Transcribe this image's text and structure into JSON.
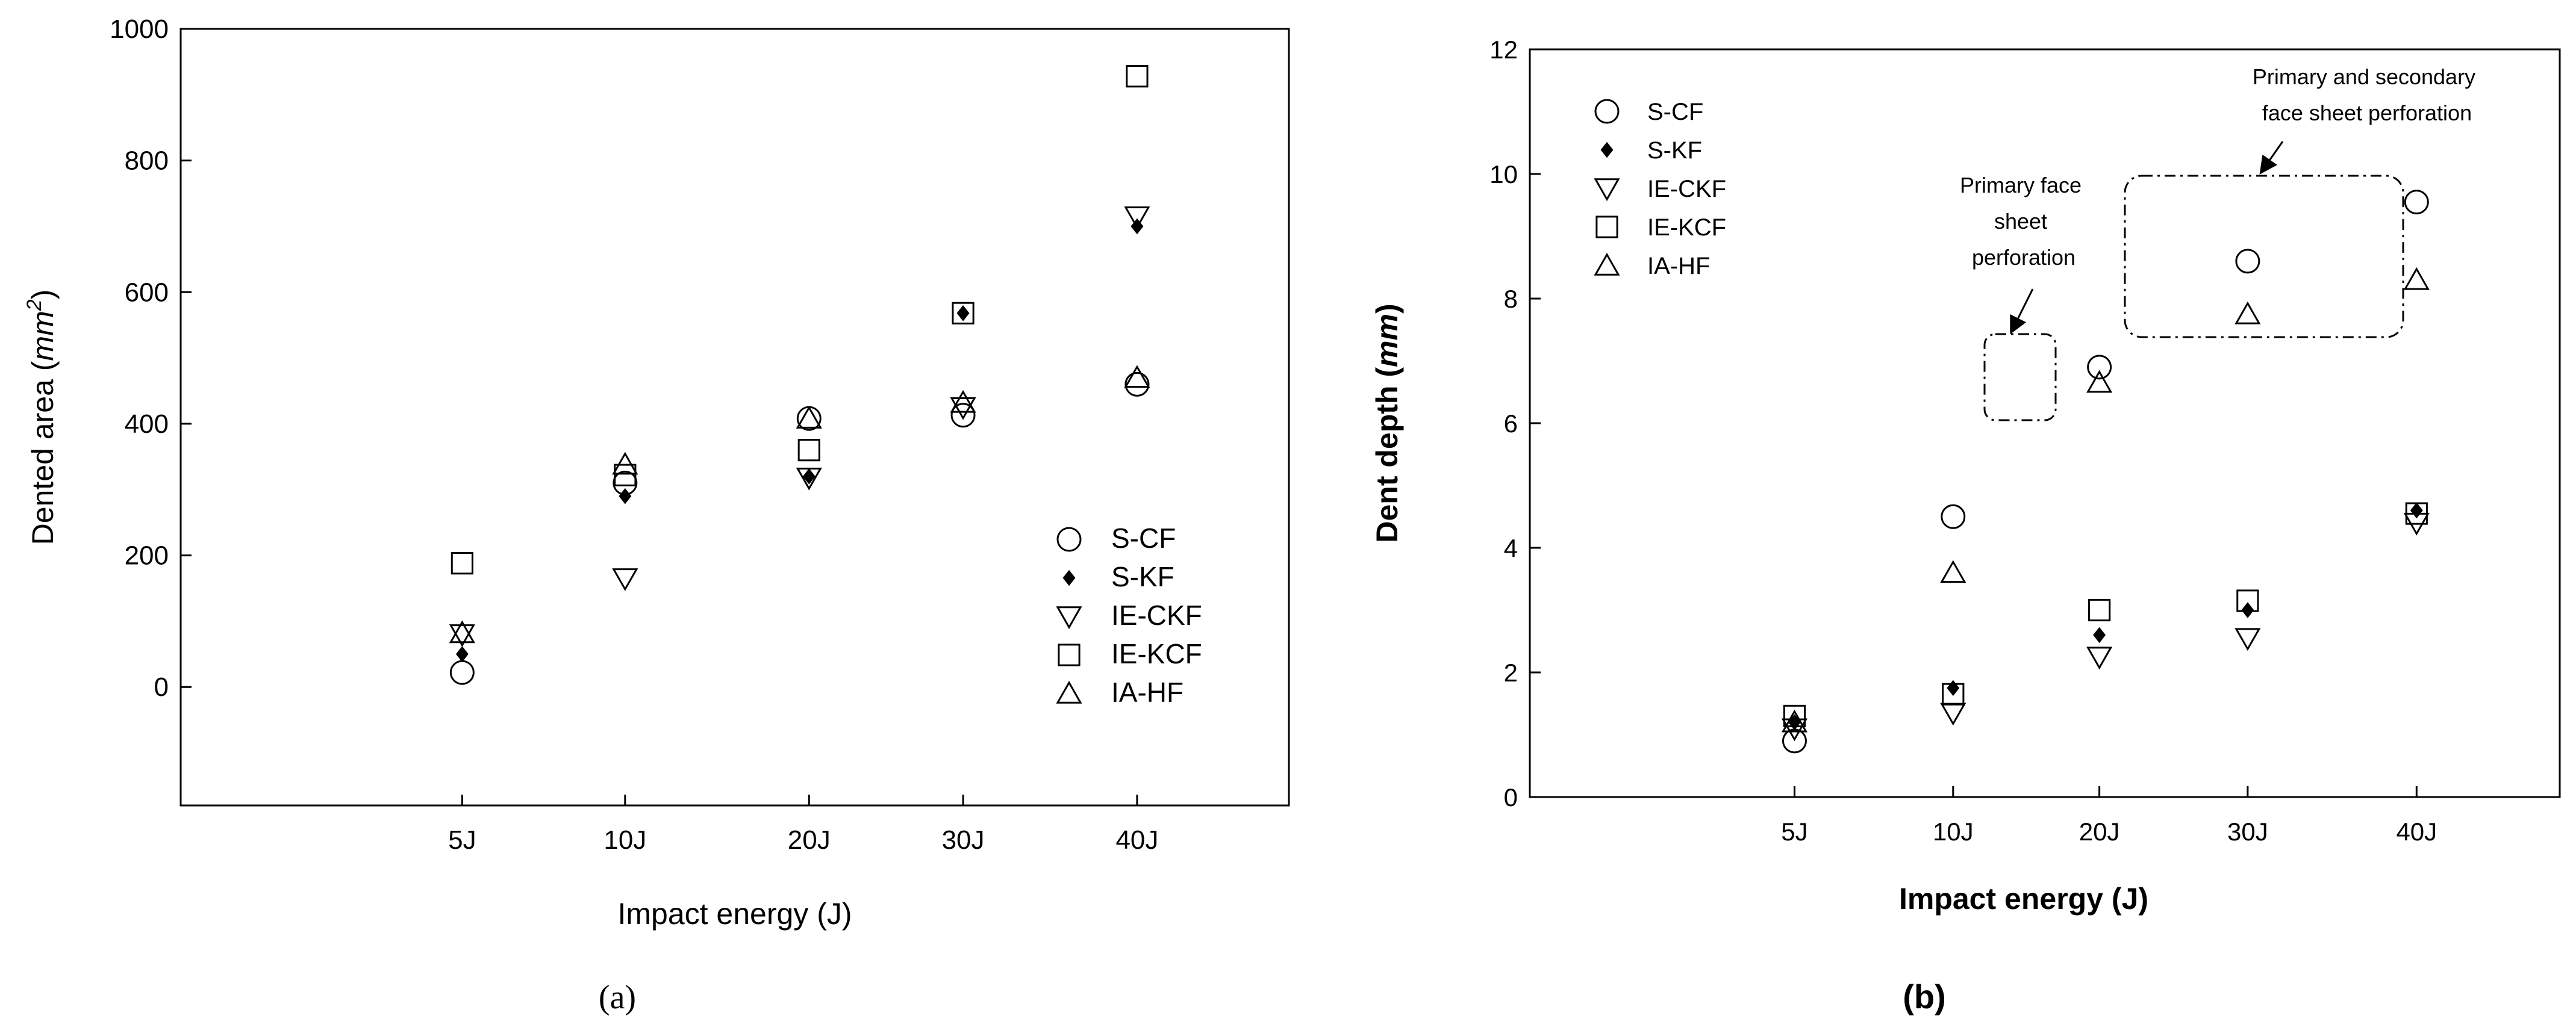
{
  "chart_data": [
    {
      "type": "scatter",
      "panel_label": "(a)",
      "xlabel": "Impact  energy (J)",
      "ylabel_main": "Dented area (",
      "ylabel_unit": "mm",
      "ylabel_sup": "2",
      "ylabel_close": ")",
      "categories": [
        "5J",
        "10J",
        "20J",
        "30J",
        "40J"
      ],
      "ylim": [
        -180,
        1000
      ],
      "yticks": [
        0,
        200,
        400,
        600,
        800,
        1000
      ],
      "legend_position": "lower-right",
      "series": [
        {
          "name": "S-CF",
          "marker": "circle",
          "values": [
            22,
            310,
            408,
            413,
            460
          ]
        },
        {
          "name": "S-KF",
          "marker": "dot",
          "values": [
            50,
            290,
            320,
            568,
            700
          ]
        },
        {
          "name": "IE-CKF",
          "marker": "triangle-down",
          "values": [
            80,
            165,
            318,
            425,
            715
          ]
        },
        {
          "name": "IE-KCF",
          "marker": "square",
          "values": [
            188,
            322,
            360,
            568,
            928
          ]
        },
        {
          "name": "IA-HF",
          "marker": "triangle-up",
          "values": [
            82,
            338,
            408,
            432,
            470
          ]
        }
      ],
      "annotations": []
    },
    {
      "type": "scatter",
      "panel_label": "(b)",
      "xlabel": "Impact energy (J)",
      "ylabel_main": "Dent depth (",
      "ylabel_unit": "mm",
      "ylabel_close": ")",
      "categories": [
        "5J",
        "10J",
        "20J",
        "30J",
        "40J"
      ],
      "ylim": [
        0,
        12
      ],
      "yticks": [
        0,
        2,
        4,
        6,
        8,
        10,
        12
      ],
      "legend_position": "upper-left",
      "series": [
        {
          "name": "S-CF",
          "marker": "circle",
          "values": [
            0.9,
            4.5,
            6.9,
            8.6,
            9.55
          ]
        },
        {
          "name": "S-KF",
          "marker": "dot",
          "values": [
            1.2,
            1.75,
            2.6,
            3.0,
            4.6
          ]
        },
        {
          "name": "IE-CKF",
          "marker": "triangle-down",
          "values": [
            1.1,
            1.35,
            2.25,
            2.55,
            4.4
          ]
        },
        {
          "name": "IE-KCF",
          "marker": "square",
          "values": [
            1.3,
            1.65,
            3.0,
            3.15,
            4.55
          ]
        },
        {
          "name": "IA-HF",
          "marker": "triangle-up",
          "values": [
            1.2,
            3.6,
            6.65,
            7.75,
            8.3
          ]
        }
      ],
      "annotations": [
        {
          "lines": [
            "Primary face",
            "sheet",
            "perforation"
          ]
        },
        {
          "lines": [
            "Primary and secondary",
            "face sheet perforation"
          ]
        }
      ]
    }
  ]
}
